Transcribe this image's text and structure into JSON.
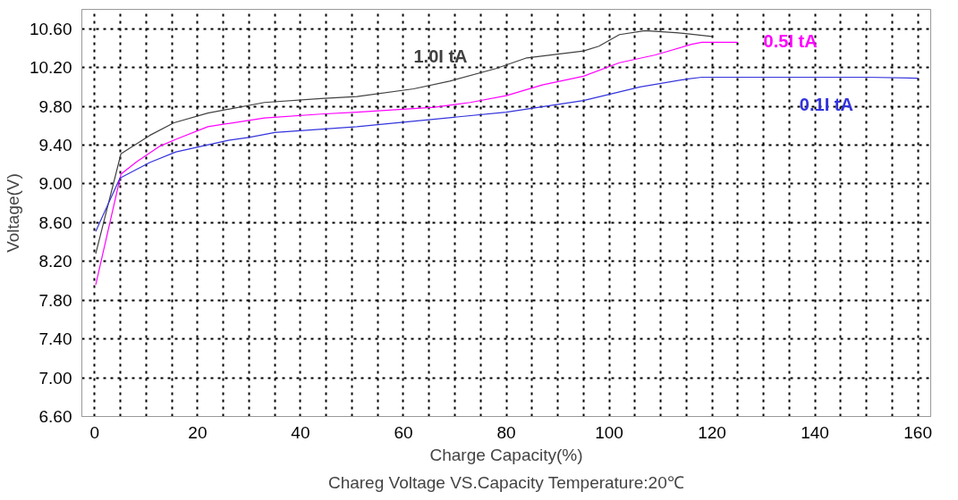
{
  "chart_data": {
    "type": "line",
    "title": "Chareg Voltage VS.Capacity Temperature:20℃",
    "xlabel": "Charge Capacity(%)",
    "ylabel": "Voltage(V)",
    "xlim": [
      -2.5,
      162.5
    ],
    "ylim": [
      6.6,
      10.8
    ],
    "xticks": [
      0,
      {
        "value": 5,
        "label": null
      },
      {
        "value": 10,
        "label": null
      },
      {
        "value": 15,
        "label": null
      },
      20,
      {
        "value": 25,
        "label": null
      },
      {
        "value": 30,
        "label": null
      },
      {
        "value": 35,
        "label": null
      },
      40,
      {
        "value": 45,
        "label": null
      },
      {
        "value": 50,
        "label": null
      },
      {
        "value": 55,
        "label": null
      },
      60,
      {
        "value": 65,
        "label": null
      },
      {
        "value": 70,
        "label": null
      },
      {
        "value": 75,
        "label": null
      },
      80,
      {
        "value": 85,
        "label": null
      },
      {
        "value": 90,
        "label": null
      },
      {
        "value": 95,
        "label": null
      },
      100,
      {
        "value": 105,
        "label": null
      },
      {
        "value": 110,
        "label": null
      },
      {
        "value": 115,
        "label": null
      },
      120,
      {
        "value": 125,
        "label": null
      },
      {
        "value": 130,
        "label": null
      },
      {
        "value": 135,
        "label": null
      },
      140,
      {
        "value": 145,
        "label": null
      },
      {
        "value": 150,
        "label": null
      },
      {
        "value": 155,
        "label": null
      },
      160
    ],
    "yticks": [
      {
        "value": 6.6,
        "label": "6.60"
      },
      {
        "value": 7.0,
        "label": "7.00"
      },
      {
        "value": 7.4,
        "label": "7.40"
      },
      {
        "value": 7.8,
        "label": "7.80"
      },
      {
        "value": 8.2,
        "label": "8.20"
      },
      {
        "value": 8.6,
        "label": "8.60"
      },
      {
        "value": 9.0,
        "label": "9.00"
      },
      {
        "value": 9.4,
        "label": "9.40"
      },
      {
        "value": 9.8,
        "label": "9.80"
      },
      {
        "value": 10.2,
        "label": "10.20"
      },
      {
        "value": 10.6,
        "label": "10.60"
      }
    ],
    "grid": true,
    "marker": "none",
    "line_style": "solid",
    "series": [
      {
        "name": "1.0I tA",
        "color": "#404040",
        "x": [
          0.2,
          5.1,
          10.7,
          15.4,
          22,
          33,
          44,
          51,
          62,
          69,
          78,
          84,
          95,
          98,
          102,
          107,
          113,
          120
        ],
        "values": [
          8.28,
          9.31,
          9.5,
          9.63,
          9.73,
          9.84,
          9.88,
          9.9,
          9.98,
          10.06,
          10.19,
          10.3,
          10.37,
          10.42,
          10.54,
          10.58,
          10.56,
          10.52
        ]
      },
      {
        "name": "0.5I tA",
        "color": "#ff00ff",
        "x": [
          0.2,
          5.1,
          8.2,
          12.7,
          15.8,
          22,
          33,
          44,
          51,
          66,
          73,
          80,
          87,
          95,
          102,
          109,
          116,
          118,
          125
        ],
        "values": [
          7.96,
          9.1,
          9.23,
          9.39,
          9.46,
          9.59,
          9.68,
          9.72,
          9.74,
          9.79,
          9.84,
          9.91,
          10.02,
          10.11,
          10.25,
          10.33,
          10.44,
          10.46,
          10.46
        ]
      },
      {
        "name": "0.1I tA",
        "color": "#3333dd",
        "x": [
          0.2,
          4.9,
          10.7,
          15.8,
          26,
          30,
          35,
          51,
          80,
          95,
          106,
          115,
          118,
          130,
          140,
          150,
          160
        ],
        "values": [
          8.51,
          9.06,
          9.22,
          9.33,
          9.45,
          9.48,
          9.53,
          9.59,
          9.74,
          9.86,
          10.0,
          10.08,
          10.1,
          10.1,
          10.1,
          10.1,
          10.09
        ]
      }
    ]
  }
}
